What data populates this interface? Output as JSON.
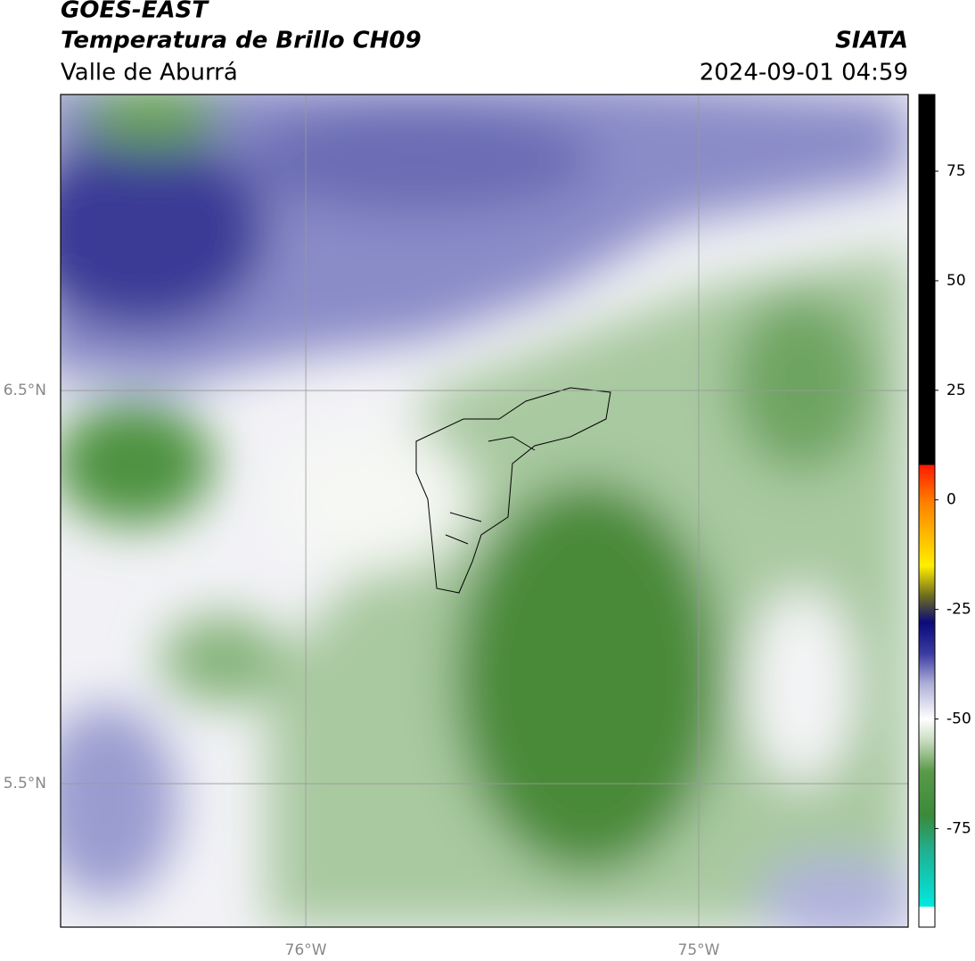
{
  "header": {
    "title": "GOES-EAST",
    "subtitle": "Temperatura de Brillo CH09",
    "region": "Valle de Aburrá",
    "source": "SIATA",
    "timestamp": "2024-09-01 04:59"
  },
  "map": {
    "xlim": [
      -76.624,
      -74.467
    ],
    "ylim": [
      5.135,
      7.253
    ],
    "xticks": [
      {
        "value": -76,
        "label": "76°W"
      },
      {
        "value": -75,
        "label": "75°W"
      }
    ],
    "yticks": [
      {
        "value": 6.5,
        "label": "6.5°N"
      },
      {
        "value": 5.5,
        "label": "5.5°N"
      }
    ],
    "grid": true
  },
  "colorbar": {
    "lim": [
      -97.5,
      92.5
    ],
    "ticks": [
      75,
      50,
      25,
      0,
      -25,
      -50,
      -75
    ]
  }
}
